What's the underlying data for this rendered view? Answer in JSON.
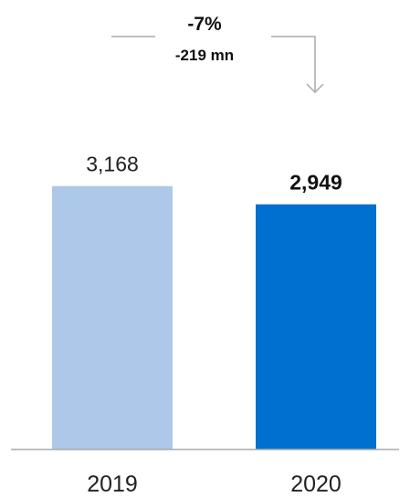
{
  "chart_data": {
    "type": "bar",
    "categories": [
      "2019",
      "2020"
    ],
    "values": [
      3168,
      2949
    ],
    "value_labels": [
      "3,168",
      "2,949"
    ],
    "bar_colors": [
      "#adc8e8",
      "#0070d0"
    ],
    "bold_value": [
      false,
      true
    ],
    "ylim": [
      0,
      3400
    ],
    "grid": false,
    "change_annotation": {
      "percent": "-7%",
      "absolute": "-219 mn"
    },
    "colors": {
      "axis": "#aaaaaa",
      "connector": "#aaaaaa"
    }
  }
}
